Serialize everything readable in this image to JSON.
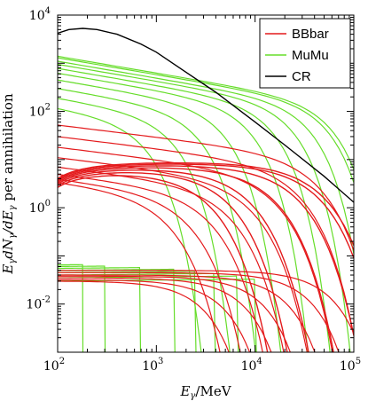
{
  "chart_data": {
    "type": "line",
    "xlabel": "E_γ/MeV",
    "ylabel": "E_γ dN_γ/dE_γ per annihilation",
    "x_scale": "log",
    "y_scale": "log",
    "xlim": [
      100,
      100000
    ],
    "ylim": [
      0.001,
      10000
    ],
    "grid": false,
    "legend_position": "top-right",
    "x_tick_labels": [
      "10^2",
      "10^3",
      "10^4",
      "10^5"
    ],
    "y_tick_labels": [
      "10^-2",
      "10^0",
      "10^2",
      "10^4"
    ],
    "colors": {
      "BBbar": "#e41a1c",
      "MuMu": "#66dd2a",
      "CR": "#000000"
    },
    "legend": [
      "BBbar",
      "MuMu",
      "CR"
    ],
    "series": [
      {
        "name": "CR",
        "color": "#000000",
        "x": [
          100,
          130,
          180,
          250,
          400,
          700,
          1000,
          2000,
          4000,
          10000,
          20000,
          50000,
          100000
        ],
        "y": [
          4200,
          5000,
          5300,
          5000,
          4000,
          2500,
          1700,
          650,
          250,
          60,
          20,
          4.5,
          1.3
        ]
      }
    ],
    "curve_groups": {
      "MuMu_high": {
        "start_values": [
          1400,
          1300,
          1100,
          950,
          780,
          620,
          450,
          300,
          190,
          120
        ],
        "cutoffs": [
          100000,
          90000,
          60000,
          40000,
          25000,
          15000,
          8000,
          4500,
          2500,
          1300
        ]
      },
      "MuMu_low": {
        "start_values": [
          0.065,
          0.06,
          0.055,
          0.05,
          0.045,
          0.04,
          0.035,
          0.03
        ],
        "cutoffs": [
          180,
          300,
          700,
          1500,
          2500,
          4000,
          6500,
          10000
        ]
      },
      "BBbar_high": {
        "start_values": [
          52,
          30,
          18,
          11,
          7,
          5,
          4,
          3.5
        ],
        "cutoffs": [
          95000,
          60000,
          35000,
          20000,
          12000,
          7500,
          4500,
          2800
        ]
      },
      "BBbar_mid": {
        "peak_values": [
          9,
          8.5,
          8,
          7.5,
          7,
          6.5,
          6
        ],
        "cutoffs": [
          100000,
          90000,
          55000,
          32000,
          18000,
          11000,
          7000
        ]
      },
      "BBbar_low": {
        "start_values": [
          0.05,
          0.045,
          0.04,
          0.038,
          0.035,
          0.032,
          0.03
        ],
        "cutoffs": [
          100000,
          60000,
          35000,
          20000,
          13000,
          8000,
          5000
        ]
      }
    }
  }
}
